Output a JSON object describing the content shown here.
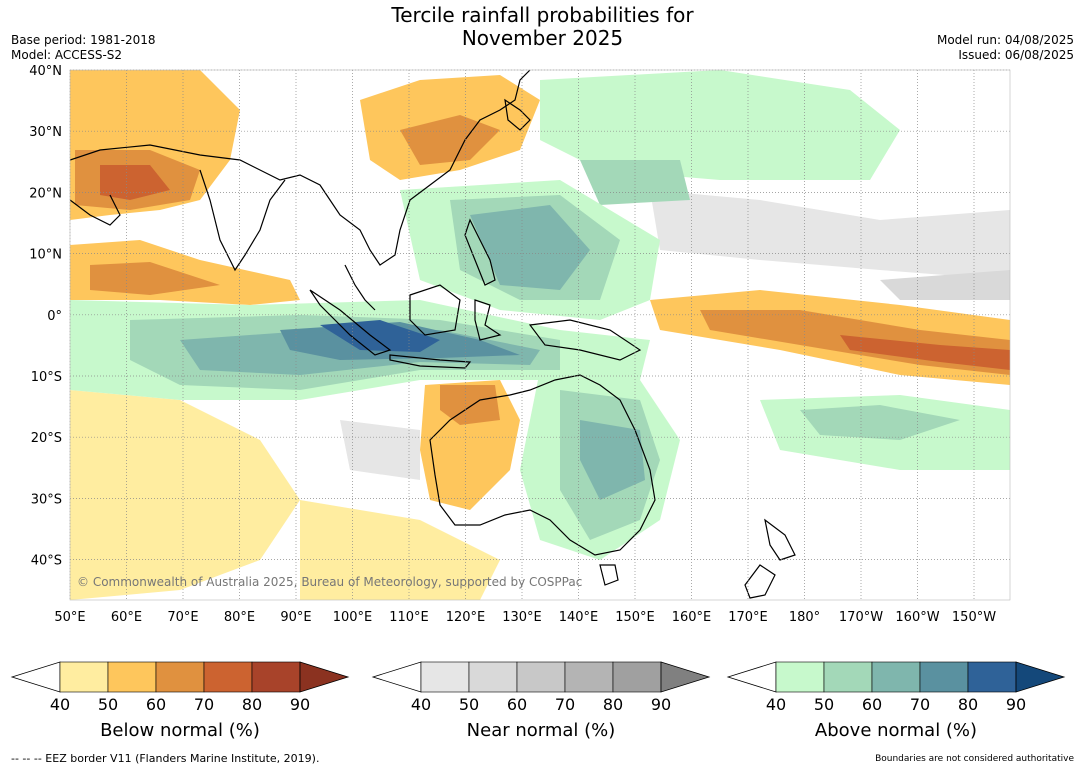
{
  "title_line1": "Tercile rainfall probabilities for",
  "title_line2": "November 2025",
  "base_period": "Base period: 1981-2018",
  "model": "Model: ACCESS-S2",
  "model_run": "Model run: 04/08/2025",
  "issued": "Issued: 06/08/2025",
  "copyright": "© Commonwealth of Australia 2025, Bureau of Meteorology, supported by COSPPac",
  "lat_labels": [
    "40°N",
    "30°N",
    "20°N",
    "10°N",
    "0°",
    "10°S",
    "20°S",
    "30°S",
    "40°S"
  ],
  "lon_labels": [
    "50°E",
    "60°E",
    "70°E",
    "80°E",
    "90°E",
    "100°E",
    "110°E",
    "120°E",
    "130°E",
    "140°E",
    "150°E",
    "160°E",
    "170°E",
    "180°",
    "170°W",
    "160°W",
    "150°W"
  ],
  "colorbars": [
    {
      "label": "Below normal (%)",
      "ticks": [
        "40",
        "50",
        "60",
        "70",
        "80",
        "90"
      ],
      "colors": [
        "#ffeda0",
        "#fec65c",
        "#e0913f",
        "#cc6330",
        "#a8432a"
      ],
      "extend_color": "#8b3220"
    },
    {
      "label": "Near normal (%)",
      "ticks": [
        "40",
        "50",
        "60",
        "70",
        "80",
        "90"
      ],
      "colors": [
        "#e6e6e6",
        "#d9d9d9",
        "#c8c8c8",
        "#b4b4b4",
        "#a0a0a0"
      ],
      "extend_color": "#808080"
    },
    {
      "label": "Above normal (%)",
      "ticks": [
        "40",
        "50",
        "60",
        "70",
        "80",
        "90"
      ],
      "colors": [
        "#c7f9cc",
        "#a3d8b8",
        "#7fb6ad",
        "#5a91a0",
        "#2f6298"
      ],
      "extend_color": "#14487a"
    }
  ],
  "footer_left": "--  --  -- EEZ border V11 (Flanders Marine Institute, 2019).",
  "footer_right": "Boundaries are not considered authoritative"
}
